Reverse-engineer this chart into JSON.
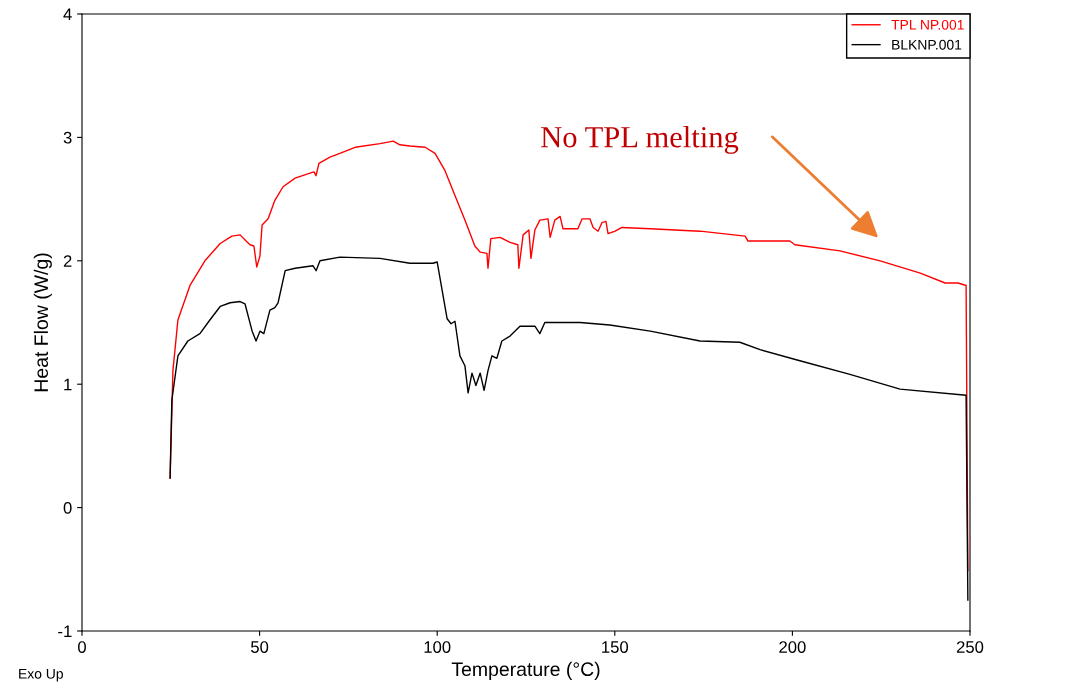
{
  "chart_data": {
    "type": "line",
    "xlabel": "Temperature (°C)",
    "ylabel": "Heat Flow (W/g)",
    "xlim": [
      0,
      250
    ],
    "ylim": [
      -1,
      4
    ],
    "xticks": [
      0,
      50,
      100,
      150,
      200,
      250
    ],
    "yticks": [
      -1,
      0,
      1,
      2,
      3,
      4
    ],
    "grid": false,
    "legend": "top right",
    "marker": "none",
    "line_style": "solid",
    "annotations": [
      "Exo Up",
      "No TPL melting"
    ],
    "series": [
      {
        "name": "TPL NP.001",
        "color": "#ff0000",
        "x": [
          24.8,
          25.6,
          27.0,
          30.4,
          34.6,
          38.9,
          42.2,
          44.5,
          46.2,
          47.3,
          48.4,
          49.2,
          50.1,
          50.7,
          52.4,
          54.3,
          56.6,
          60.0,
          64.2,
          65.3,
          65.9,
          66.7,
          69.8,
          72.6,
          76.9,
          83.9,
          87.6,
          89.5,
          92.3,
          96.6,
          99.4,
          102.2,
          105.0,
          107.8,
          110.6,
          112.1,
          114.0,
          114.3,
          115.1,
          117.7,
          120.5,
          122.7,
          123.0,
          124.2,
          125.8,
          126.4,
          127.5,
          128.9,
          131.2,
          131.8,
          133.1,
          134.6,
          135.4,
          139.6,
          140.8,
          143.0,
          143.9,
          145.3,
          146.4,
          147.5,
          148.1,
          150.1,
          152.0,
          160.0,
          174.0,
          186.7,
          187.5,
          199.3,
          200.7,
          213.4,
          224.7,
          236.0,
          243.0,
          246.6,
          248.9,
          249.4
        ],
        "values": [
          0.24,
          1.11,
          1.52,
          1.8,
          2.0,
          2.14,
          2.2,
          2.21,
          2.16,
          2.13,
          2.12,
          1.95,
          2.04,
          2.29,
          2.34,
          2.49,
          2.6,
          2.67,
          2.71,
          2.72,
          2.69,
          2.79,
          2.84,
          2.87,
          2.92,
          2.95,
          2.97,
          2.94,
          2.93,
          2.92,
          2.87,
          2.73,
          2.53,
          2.33,
          2.12,
          2.07,
          2.06,
          1.94,
          2.18,
          2.19,
          2.15,
          2.13,
          1.94,
          2.21,
          2.25,
          2.02,
          2.25,
          2.33,
          2.34,
          2.19,
          2.33,
          2.36,
          2.26,
          2.26,
          2.34,
          2.34,
          2.27,
          2.24,
          2.31,
          2.32,
          2.22,
          2.24,
          2.27,
          2.26,
          2.24,
          2.2,
          2.16,
          2.16,
          2.13,
          2.08,
          2.0,
          1.9,
          1.82,
          1.82,
          1.8,
          -0.51
        ]
      },
      {
        "name": "BLKNP.001",
        "color": "#000000",
        "x": [
          24.8,
          25.3,
          27.0,
          29.8,
          33.2,
          36.0,
          38.9,
          41.7,
          44.5,
          45.9,
          47.9,
          49.0,
          50.1,
          51.2,
          52.9,
          54.3,
          55.2,
          57.2,
          60.0,
          65.0,
          65.9,
          67.0,
          72.6,
          83.9,
          92.3,
          98.8,
          100.0,
          102.8,
          103.9,
          105.0,
          106.4,
          107.8,
          108.7,
          109.8,
          110.9,
          112.1,
          113.2,
          114.3,
          115.4,
          116.8,
          118.2,
          120.5,
          123.3,
          127.5,
          128.9,
          130.3,
          134.6,
          140.2,
          148.6,
          160.0,
          174.0,
          185.2,
          190.9,
          202.1,
          216.2,
          230.3,
          248.9,
          249.4
        ],
        "values": [
          0.24,
          0.87,
          1.23,
          1.35,
          1.41,
          1.52,
          1.63,
          1.66,
          1.67,
          1.65,
          1.43,
          1.35,
          1.43,
          1.41,
          1.6,
          1.62,
          1.66,
          1.92,
          1.94,
          1.96,
          1.92,
          2.0,
          2.03,
          2.02,
          1.98,
          1.98,
          1.99,
          1.53,
          1.49,
          1.51,
          1.23,
          1.15,
          0.93,
          1.09,
          0.99,
          1.09,
          0.95,
          1.11,
          1.23,
          1.21,
          1.35,
          1.39,
          1.47,
          1.47,
          1.41,
          1.5,
          1.5,
          1.5,
          1.48,
          1.43,
          1.35,
          1.34,
          1.28,
          1.19,
          1.08,
          0.96,
          0.91,
          -0.75
        ]
      }
    ]
  }
}
